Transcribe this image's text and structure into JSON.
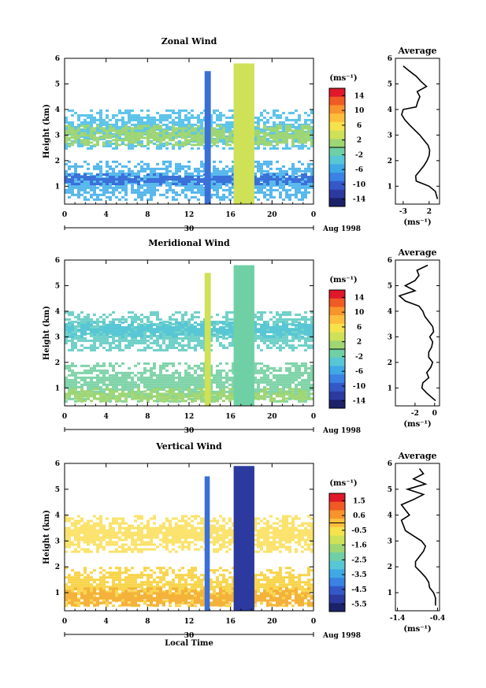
{
  "chart_data": [
    {
      "type": "heatmap",
      "title": "Zonal Wind",
      "ylabel": "Height (km)",
      "x_ticks": [
        "0",
        "4",
        "8",
        "12",
        "16",
        "20",
        "0"
      ],
      "y_ticks": [
        "1",
        "2",
        "3",
        "4",
        "5",
        "6"
      ],
      "date_day": "30",
      "date_month": "Aug 1998",
      "xlim": [
        0,
        24
      ],
      "ylim": [
        0.3,
        6
      ],
      "colorbar": {
        "unit": "(ms⁻¹)",
        "labels": [
          "14",
          "10",
          "6",
          "2",
          "-2",
          "-6",
          "-10",
          "-14"
        ],
        "range": [
          -16,
          16
        ],
        "colors": [
          "#e0182a",
          "#f05a23",
          "#f7942b",
          "#fdbf3b",
          "#f6e34b",
          "#cfe157",
          "#9fd674",
          "#6fd0a6",
          "#57c6d5",
          "#3fa9e6",
          "#3a82e3",
          "#3558c8",
          "#2c3aa0",
          "#1b2268"
        ]
      },
      "echo_bands": [
        {
          "y0": 0.5,
          "y1": 2.0,
          "color": "#54b6ec"
        },
        {
          "y0": 1.1,
          "y1": 1.5,
          "color": "#3a6fd8"
        },
        {
          "y0": 2.5,
          "y1": 4.0,
          "color": "#5bc3ea"
        },
        {
          "y0": 2.6,
          "y1": 3.4,
          "color": "#9fd674"
        }
      ],
      "convective_columns": [
        {
          "x0": 13.5,
          "x1": 14.1,
          "ytop": 5.5,
          "color": "#3a6fd8"
        },
        {
          "x0": 16.3,
          "x1": 18.3,
          "ytop": 5.8,
          "color": "#cfe157"
        }
      ],
      "profile": {
        "title": "Average",
        "xlabel": "(ms⁻¹)",
        "x_ticks": [
          "-3",
          "2"
        ],
        "x_tick_values": [
          -3,
          2
        ],
        "xlim": [
          -4.5,
          4
        ],
        "height": [
          0.5,
          0.8,
          1.0,
          1.2,
          1.4,
          1.6,
          1.8,
          2.0,
          2.2,
          2.4,
          2.6,
          2.8,
          3.0,
          3.2,
          3.4,
          3.6,
          3.8,
          4.0,
          4.1,
          4.3,
          4.5,
          4.7,
          4.9,
          5.1,
          5.3,
          5.5,
          5.7
        ],
        "speed": [
          3.6,
          3.2,
          2.0,
          -0.5,
          -0.6,
          0.2,
          1.0,
          1.6,
          2.0,
          2.1,
          1.8,
          1.0,
          0.2,
          -0.8,
          -1.8,
          -2.7,
          -3.3,
          -3.0,
          -0.5,
          -0.2,
          0.2,
          -0.3,
          1.5,
          0.4,
          -0.5,
          -1.8,
          -3.0
        ]
      }
    },
    {
      "type": "heatmap",
      "title": "Meridional Wind",
      "ylabel": "Height (km)",
      "x_ticks": [
        "0",
        "4",
        "8",
        "12",
        "16",
        "20",
        "0"
      ],
      "y_ticks": [
        "1",
        "2",
        "3",
        "4",
        "5",
        "6"
      ],
      "date_day": "30",
      "date_month": "Aug 1998",
      "xlim": [
        0,
        24
      ],
      "ylim": [
        0.3,
        6
      ],
      "colorbar": {
        "unit": "(ms⁻¹)",
        "labels": [
          "14",
          "10",
          "6",
          "2",
          "-2",
          "-6",
          "-10",
          "-14"
        ],
        "range": [
          -16,
          16
        ],
        "colors": [
          "#e0182a",
          "#f05a23",
          "#f7942b",
          "#fdbf3b",
          "#f6e34b",
          "#cfe157",
          "#9fd674",
          "#6fd0a6",
          "#57c6d5",
          "#3fa9e6",
          "#3a82e3",
          "#3558c8",
          "#2c3aa0",
          "#1b2268"
        ]
      },
      "echo_bands": [
        {
          "y0": 0.5,
          "y1": 2.0,
          "color": "#7fd3a8"
        },
        {
          "y0": 0.5,
          "y1": 1.0,
          "color": "#9fd674"
        },
        {
          "y0": 2.5,
          "y1": 4.0,
          "color": "#6fd0c8"
        },
        {
          "y0": 3.0,
          "y1": 3.6,
          "color": "#57c6d5"
        }
      ],
      "convective_columns": [
        {
          "x0": 13.5,
          "x1": 14.1,
          "ytop": 5.5,
          "color": "#cfe157"
        },
        {
          "x0": 16.3,
          "x1": 18.3,
          "ytop": 5.8,
          "color": "#6fd0a6"
        }
      ],
      "profile": {
        "title": "Average",
        "xlabel": "(ms⁻¹)",
        "x_ticks": [
          "-2",
          "0"
        ],
        "x_tick_values": [
          -2,
          0
        ],
        "xlim": [
          -4,
          0.5
        ],
        "height": [
          0.5,
          0.8,
          1.0,
          1.2,
          1.4,
          1.6,
          1.8,
          2.0,
          2.2,
          2.4,
          2.6,
          2.8,
          3.0,
          3.2,
          3.4,
          3.6,
          3.8,
          4.0,
          4.2,
          4.4,
          4.6,
          4.8,
          5.0,
          5.2,
          5.4,
          5.6,
          5.8
        ],
        "speed": [
          0.1,
          -0.8,
          -1.3,
          -1.2,
          -0.6,
          -0.8,
          -0.4,
          -0.2,
          -0.6,
          -0.6,
          -0.3,
          -0.2,
          -0.5,
          -0.1,
          -0.2,
          -0.6,
          -1.0,
          -1.2,
          -1.6,
          -3.0,
          -3.6,
          -2.0,
          -3.0,
          -2.0,
          -1.6,
          -1.8,
          -0.7
        ]
      }
    },
    {
      "type": "heatmap",
      "title": "Vertical Wind",
      "xlabel": "Local Time",
      "ylabel": "Height (km)",
      "x_ticks": [
        "0",
        "4",
        "8",
        "12",
        "16",
        "20",
        "0"
      ],
      "y_ticks": [
        "1",
        "2",
        "3",
        "4",
        "5",
        "6"
      ],
      "date_day": "30",
      "date_month": "Aug 1998",
      "xlim": [
        0,
        24
      ],
      "ylim": [
        0.3,
        6
      ],
      "colorbar": {
        "unit": "(ms⁻¹)",
        "labels": [
          "1.5",
          "0.6",
          "-0.5",
          "-1.6",
          "-2.5",
          "-3.5",
          "-4.5",
          "-5.5"
        ],
        "range": [
          -6,
          2
        ],
        "colors": [
          "#e0182a",
          "#f05a23",
          "#f7942b",
          "#fdbf3b",
          "#f6e34b",
          "#cfe157",
          "#9fd674",
          "#6fd0a6",
          "#57c6d5",
          "#3fa9e6",
          "#3a82e3",
          "#3558c8",
          "#2c3aa0",
          "#1b2268"
        ]
      },
      "echo_bands": [
        {
          "y0": 0.5,
          "y1": 2.0,
          "color": "#f8d44a"
        },
        {
          "y0": 0.5,
          "y1": 1.2,
          "color": "#f4b23a"
        },
        {
          "y0": 2.6,
          "y1": 4.0,
          "color": "#fbe26a"
        }
      ],
      "convective_columns": [
        {
          "x0": 13.5,
          "x1": 14.0,
          "ytop": 5.5,
          "color": "#3a6fd8"
        },
        {
          "x0": 16.3,
          "x1": 18.3,
          "ytop": 5.9,
          "color": "#2c3aa0"
        }
      ],
      "profile": {
        "title": "Average",
        "xlabel": "(ms⁻¹)",
        "x_ticks": [
          "-1.4",
          "-0.4"
        ],
        "x_tick_values": [
          -1.4,
          -0.4
        ],
        "xlim": [
          -1.45,
          -0.35
        ],
        "height": [
          0.5,
          0.8,
          1.0,
          1.2,
          1.4,
          1.6,
          1.8,
          2.0,
          2.2,
          2.4,
          2.6,
          2.8,
          3.0,
          3.2,
          3.4,
          3.6,
          3.8,
          4.0,
          4.2,
          4.4,
          4.6,
          4.8,
          5.0,
          5.2,
          5.4,
          5.6,
          5.8
        ],
        "speed": [
          -0.45,
          -0.45,
          -0.5,
          -0.6,
          -0.62,
          -0.7,
          -0.82,
          -0.95,
          -0.95,
          -0.85,
          -0.75,
          -0.7,
          -0.8,
          -1.0,
          -1.2,
          -1.25,
          -1.3,
          -1.1,
          -1.2,
          -1.3,
          -1.0,
          -0.75,
          -1.15,
          -0.7,
          -1.0,
          -0.75,
          -0.85
        ]
      }
    }
  ]
}
